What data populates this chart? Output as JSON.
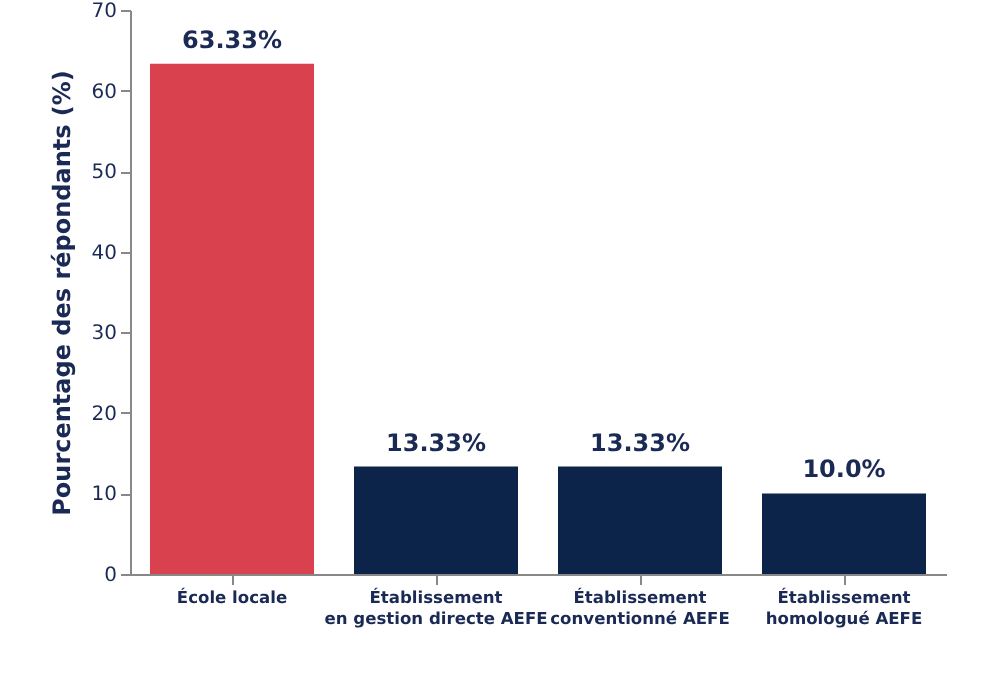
{
  "chart_data": {
    "type": "bar",
    "ylabel": "Pourcentage des répondants (%)",
    "categories": [
      "École locale",
      "Établissement\nen gestion directe AEFE",
      "Établissement\nconventionné AEFE",
      "Établissement\nhomologué AEFE"
    ],
    "values": [
      63.33,
      13.33,
      13.33,
      10.0
    ],
    "colors": [
      "#d9414e",
      "#0c2449",
      "#0c2449",
      "#0c2449"
    ],
    "value_labels": [
      "63.33%",
      "13.33%",
      "13.33%",
      "10.0%"
    ],
    "ylim": [
      0,
      70
    ],
    "yticks": [
      0,
      10,
      20,
      30,
      40,
      50,
      60,
      70
    ],
    "grid": false
  }
}
